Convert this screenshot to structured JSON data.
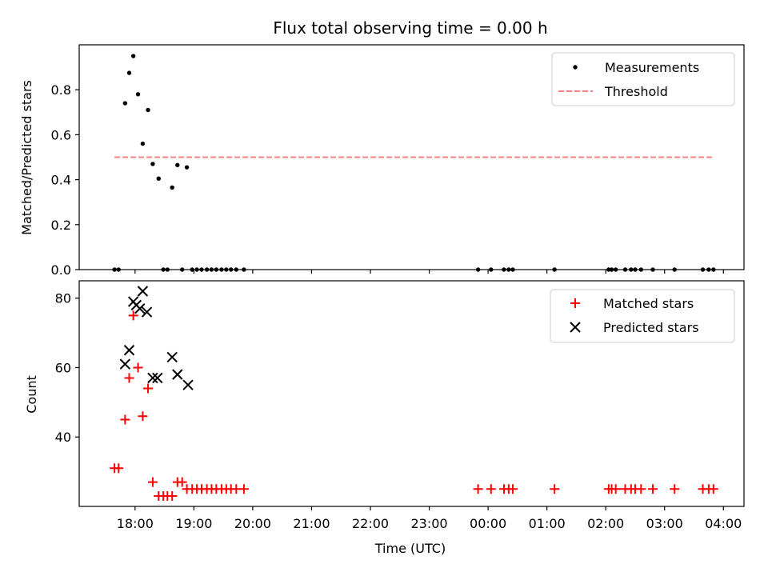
{
  "chart_data": {
    "title": "Flux total observing time = 0.00 h",
    "xlabel": "Time (UTC)",
    "x_ticks": [
      "18:00",
      "19:00",
      "20:00",
      "21:00",
      "22:00",
      "23:00",
      "00:00",
      "01:00",
      "02:00",
      "03:00",
      "04:00"
    ],
    "xlim_hours": [
      17.05,
      28.35
    ],
    "panels": [
      {
        "type": "scatter",
        "ylabel": "Matched/Predicted stars",
        "ylim": [
          0,
          1.0
        ],
        "y_ticks": [
          "0.0",
          "0.2",
          "0.4",
          "0.6",
          "0.8"
        ],
        "y_tick_values": [
          0.0,
          0.2,
          0.4,
          0.6,
          0.8
        ],
        "legend": [
          "Measurements",
          "Threshold"
        ],
        "threshold": {
          "value": 0.5,
          "x_start": 17.65,
          "x_end": 27.85,
          "color": "#ff8080"
        },
        "measurements": [
          [
            17.65,
            0.0
          ],
          [
            17.72,
            0.0
          ],
          [
            17.83,
            0.74
          ],
          [
            17.9,
            0.875
          ],
          [
            17.97,
            0.95
          ],
          [
            18.05,
            0.78
          ],
          [
            18.13,
            0.56
          ],
          [
            18.22,
            0.71
          ],
          [
            18.3,
            0.47
          ],
          [
            18.4,
            0.405
          ],
          [
            18.48,
            0.0
          ],
          [
            18.55,
            0.0
          ],
          [
            18.63,
            0.365
          ],
          [
            18.72,
            0.465
          ],
          [
            18.8,
            0.0
          ],
          [
            18.88,
            0.455
          ],
          [
            18.97,
            0.0
          ],
          [
            19.05,
            0.0
          ],
          [
            19.13,
            0.0
          ],
          [
            19.22,
            0.0
          ],
          [
            19.3,
            0.0
          ],
          [
            19.38,
            0.0
          ],
          [
            19.47,
            0.0
          ],
          [
            19.55,
            0.0
          ],
          [
            19.63,
            0.0
          ],
          [
            19.72,
            0.0
          ],
          [
            19.85,
            0.0
          ],
          [
            23.83,
            0.0
          ],
          [
            24.05,
            0.0
          ],
          [
            24.27,
            0.0
          ],
          [
            24.35,
            0.0
          ],
          [
            24.42,
            0.0
          ],
          [
            25.13,
            0.0
          ],
          [
            26.05,
            0.0
          ],
          [
            26.1,
            0.0
          ],
          [
            26.17,
            0.0
          ],
          [
            26.33,
            0.0
          ],
          [
            26.43,
            0.0
          ],
          [
            26.5,
            0.0
          ],
          [
            26.6,
            0.0
          ],
          [
            26.8,
            0.0
          ],
          [
            27.17,
            0.0
          ],
          [
            27.65,
            0.0
          ],
          [
            27.75,
            0.0
          ],
          [
            27.83,
            0.0
          ]
        ]
      },
      {
        "type": "scatter",
        "ylabel": "Count",
        "ylim": [
          20,
          85
        ],
        "y_ticks": [
          "40",
          "60",
          "80"
        ],
        "y_tick_values": [
          40,
          60,
          80
        ],
        "legend": [
          "Matched stars",
          "Predicted stars"
        ],
        "matched_color": "#ff0000",
        "predicted_color": "#000000",
        "matched": [
          [
            17.65,
            31
          ],
          [
            17.72,
            31
          ],
          [
            17.83,
            45
          ],
          [
            17.9,
            57
          ],
          [
            17.97,
            75
          ],
          [
            18.05,
            60
          ],
          [
            18.13,
            46
          ],
          [
            18.22,
            54
          ],
          [
            18.3,
            27
          ],
          [
            18.4,
            23
          ],
          [
            18.48,
            23
          ],
          [
            18.55,
            23
          ],
          [
            18.63,
            23
          ],
          [
            18.72,
            27
          ],
          [
            18.8,
            27
          ],
          [
            18.88,
            25
          ],
          [
            18.97,
            25
          ],
          [
            19.05,
            25
          ],
          [
            19.13,
            25
          ],
          [
            19.22,
            25
          ],
          [
            19.3,
            25
          ],
          [
            19.38,
            25
          ],
          [
            19.47,
            25
          ],
          [
            19.55,
            25
          ],
          [
            19.63,
            25
          ],
          [
            19.72,
            25
          ],
          [
            19.85,
            25
          ],
          [
            23.83,
            25
          ],
          [
            24.05,
            25
          ],
          [
            24.27,
            25
          ],
          [
            24.35,
            25
          ],
          [
            24.42,
            25
          ],
          [
            25.13,
            25
          ],
          [
            26.05,
            25
          ],
          [
            26.1,
            25
          ],
          [
            26.17,
            25
          ],
          [
            26.33,
            25
          ],
          [
            26.43,
            25
          ],
          [
            26.5,
            25
          ],
          [
            26.6,
            25
          ],
          [
            26.8,
            25
          ],
          [
            27.17,
            25
          ],
          [
            27.65,
            25
          ],
          [
            27.75,
            25
          ],
          [
            27.83,
            25
          ]
        ],
        "predicted": [
          [
            17.83,
            61
          ],
          [
            17.9,
            65
          ],
          [
            17.97,
            79
          ],
          [
            18.02,
            78
          ],
          [
            18.08,
            77
          ],
          [
            18.13,
            82
          ],
          [
            18.2,
            76
          ],
          [
            18.3,
            57
          ],
          [
            18.38,
            57
          ],
          [
            18.63,
            63
          ],
          [
            18.72,
            58
          ],
          [
            18.9,
            55
          ]
        ]
      }
    ]
  }
}
